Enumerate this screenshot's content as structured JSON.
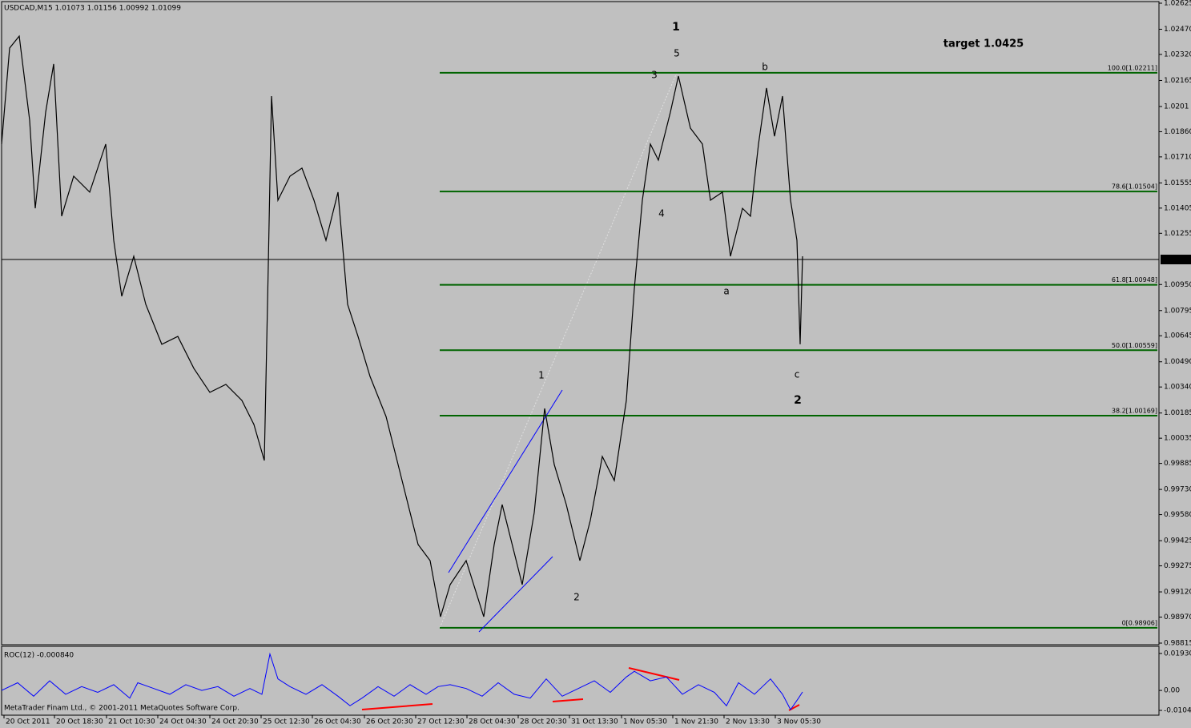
{
  "chart_data": [
    {
      "type": "line",
      "title": "USDCAD,M15  1.01073 1.01156 1.00992 1.01099",
      "color": "#000000",
      "x": [
        0,
        10,
        22,
        35,
        42,
        55,
        65,
        75,
        90,
        110,
        130,
        140,
        150,
        165,
        180,
        200,
        220,
        240,
        260,
        280,
        300,
        315,
        328,
        333,
        337,
        345,
        360,
        375,
        390,
        405,
        420,
        432,
        445,
        460,
        480,
        500,
        520,
        535,
        548,
        560,
        580,
        602,
        615,
        625,
        640,
        650,
        665,
        678,
        690,
        705,
        722,
        735,
        750,
        765,
        780,
        790,
        800,
        810,
        820,
        835,
        845,
        860,
        875,
        885,
        900,
        910,
        925,
        935,
        945,
        955,
        965,
        975,
        985,
        993,
        997,
        1000
      ],
      "values": [
        1.01786,
        1.02358,
        1.02429,
        1.01929,
        1.01404,
        1.01976,
        1.02263,
        1.01357,
        1.01595,
        1.015,
        1.01786,
        1.01213,
        1.0088,
        1.01118,
        1.00832,
        1.00594,
        1.00641,
        1.00451,
        1.00308,
        1.00355,
        1.0026,
        1.00117,
        0.99902,
        1.01071,
        1.02072,
        1.01452,
        1.01595,
        1.01643,
        1.01452,
        1.01213,
        1.015,
        1.00832,
        1.00641,
        1.00403,
        1.00164,
        0.99783,
        0.99402,
        0.99306,
        0.98972,
        0.99163,
        0.99306,
        0.98972,
        0.99402,
        0.9964,
        0.99354,
        0.99163,
        0.99592,
        1.00212,
        0.99878,
        0.9964,
        0.99306,
        0.99545,
        0.99926,
        0.99783,
        1.0026,
        1.00927,
        1.01452,
        1.01786,
        1.01691,
        1.01976,
        1.02191,
        1.01881,
        1.01786,
        1.01452,
        1.015,
        1.01118,
        1.01404,
        1.01357,
        1.01786,
        1.0212,
        1.01833,
        1.02072,
        1.01452,
        1.01213,
        1.00594,
        1.01118
      ],
      "xlim": [
        0,
        1445
      ],
      "ylim": [
        0.98815,
        1.02625
      ],
      "yticks": [
        1.02625,
        {
          "value": 1.0247,
          "label": "1.02470"
        },
        {
          "value": 1.0232,
          "label": "1.02320"
        },
        1.02165,
        1.0201,
        {
          "value": 1.0186,
          "label": "1.01860"
        },
        {
          "value": 1.0171,
          "label": "1.01710"
        },
        1.01555,
        1.01405,
        1.01255,
        {
          "value": 1.0095,
          "label": "1.00950"
        },
        1.00795,
        1.00645,
        {
          "value": 1.0049,
          "label": "1.00490"
        },
        {
          "value": 1.0034,
          "label": "1.00340"
        },
        1.00185,
        1.00035,
        0.99885,
        {
          "value": 0.9973,
          "label": "0.99730"
        },
        {
          "value": 0.9958,
          "label": "0.99580"
        },
        0.99425,
        0.99275,
        {
          "value": 0.9912,
          "label": "0.99120"
        },
        {
          "value": 0.9897,
          "label": "0.98970"
        },
        0.98815
      ],
      "current_price": 1.01099,
      "fib_levels": [
        {
          "value": 1.02211,
          "label": "100.0[1.02211]"
        },
        {
          "value": 1.01504,
          "label": "78.6[1.01504]"
        },
        {
          "value": 1.00948,
          "label": "61.8[1.00948]"
        },
        {
          "value": 1.00559,
          "label": "50.0[1.00559]"
        },
        {
          "value": 1.00169,
          "label": "38.2[1.00169]"
        },
        {
          "value": 0.98906,
          "label": "0[0.98906]"
        }
      ],
      "annotations": [
        {
          "text": "1",
          "color": "#0000ff"
        },
        {
          "text": "5",
          "color": "#ff0000"
        },
        {
          "text": "3",
          "color": "#ff0000"
        },
        {
          "text": "b",
          "color": "#ff0000"
        },
        {
          "text": "4",
          "color": "#ff0000"
        },
        {
          "text": "a",
          "color": "#ff0000"
        },
        {
          "text": "c",
          "color": "#ff0000"
        },
        {
          "text": "2",
          "color": "#0000ff"
        },
        {
          "text": "1",
          "color": "#ff0000"
        },
        {
          "text": "2",
          "color": "#ff0000"
        },
        {
          "text": "target 1.0425",
          "color": "#0000ff"
        }
      ]
    },
    {
      "type": "line",
      "title": "ROC(12) -0.000840",
      "color": "#0000ff",
      "x": [
        0,
        20,
        40,
        60,
        80,
        100,
        120,
        140,
        160,
        170,
        190,
        210,
        230,
        250,
        270,
        290,
        310,
        325,
        335,
        345,
        360,
        380,
        400,
        420,
        435,
        450,
        470,
        490,
        510,
        530,
        545,
        560,
        580,
        600,
        620,
        640,
        660,
        680,
        700,
        720,
        740,
        760,
        780,
        790,
        810,
        830,
        850,
        870,
        890,
        905,
        920,
        940,
        960,
        975,
        985,
        995,
        1000
      ],
      "values": [
        0,
        0.004,
        -0.003,
        0.005,
        -0.002,
        0.002,
        -0.001,
        0.003,
        -0.004,
        0.004,
        0.001,
        -0.002,
        0.003,
        0,
        0.002,
        -0.003,
        0.001,
        -0.002,
        0.019,
        0.006,
        0.002,
        -0.002,
        0.003,
        -0.003,
        -0.008,
        -0.004,
        0.002,
        -0.003,
        0.003,
        -0.002,
        0.002,
        0.003,
        0.001,
        -0.003,
        0.004,
        -0.002,
        -0.004,
        0.006,
        -0.003,
        0.001,
        0.005,
        -0.001,
        0.007,
        0.01,
        0.005,
        0.007,
        -0.002,
        0.003,
        -0.001,
        -0.008,
        0.004,
        -0.002,
        0.006,
        -0.002,
        -0.01,
        -0.004,
        -0.0008
      ],
      "xlim": [
        0,
        1445
      ],
      "ylim": [
        -0.0125,
        0.0226
      ],
      "yticks": [
        {
          "value": 0.0193,
          "label": "0.01930"
        },
        {
          "value": 0,
          "label": "0.00"
        },
        -0.01042
      ],
      "xticks": [
        {
          "value": 3,
          "label": "20 Oct 2011"
        },
        {
          "value": 66,
          "label": "20 Oct 18:30"
        },
        {
          "value": 131,
          "label": "21 Oct 10:30"
        },
        {
          "value": 195,
          "label": "24 Oct 04:30"
        },
        {
          "value": 260,
          "label": "24 Oct 20:30"
        },
        {
          "value": 324,
          "label": "25 Oct 12:30"
        },
        {
          "value": 388,
          "label": "26 Oct 04:30"
        },
        {
          "value": 453,
          "label": "26 Oct 20:30"
        },
        {
          "value": 517,
          "label": "27 Oct 12:30"
        },
        {
          "value": 581,
          "label": "28 Oct 04:30"
        },
        {
          "value": 645,
          "label": "28 Oct 20:30"
        },
        {
          "value": 709,
          "label": "31 Oct 13:30"
        },
        {
          "value": 774,
          "label": "1 Nov 05:30"
        },
        {
          "value": 838,
          "label": "1 Nov 21:30"
        },
        {
          "value": 902,
          "label": "2 Nov 13:30"
        },
        {
          "value": 966,
          "label": "3 Nov 05:30"
        }
      ],
      "footer": "MetaTrader Finam Ltd., © 2001-2011 MetaQuotes Software Corp."
    }
  ]
}
